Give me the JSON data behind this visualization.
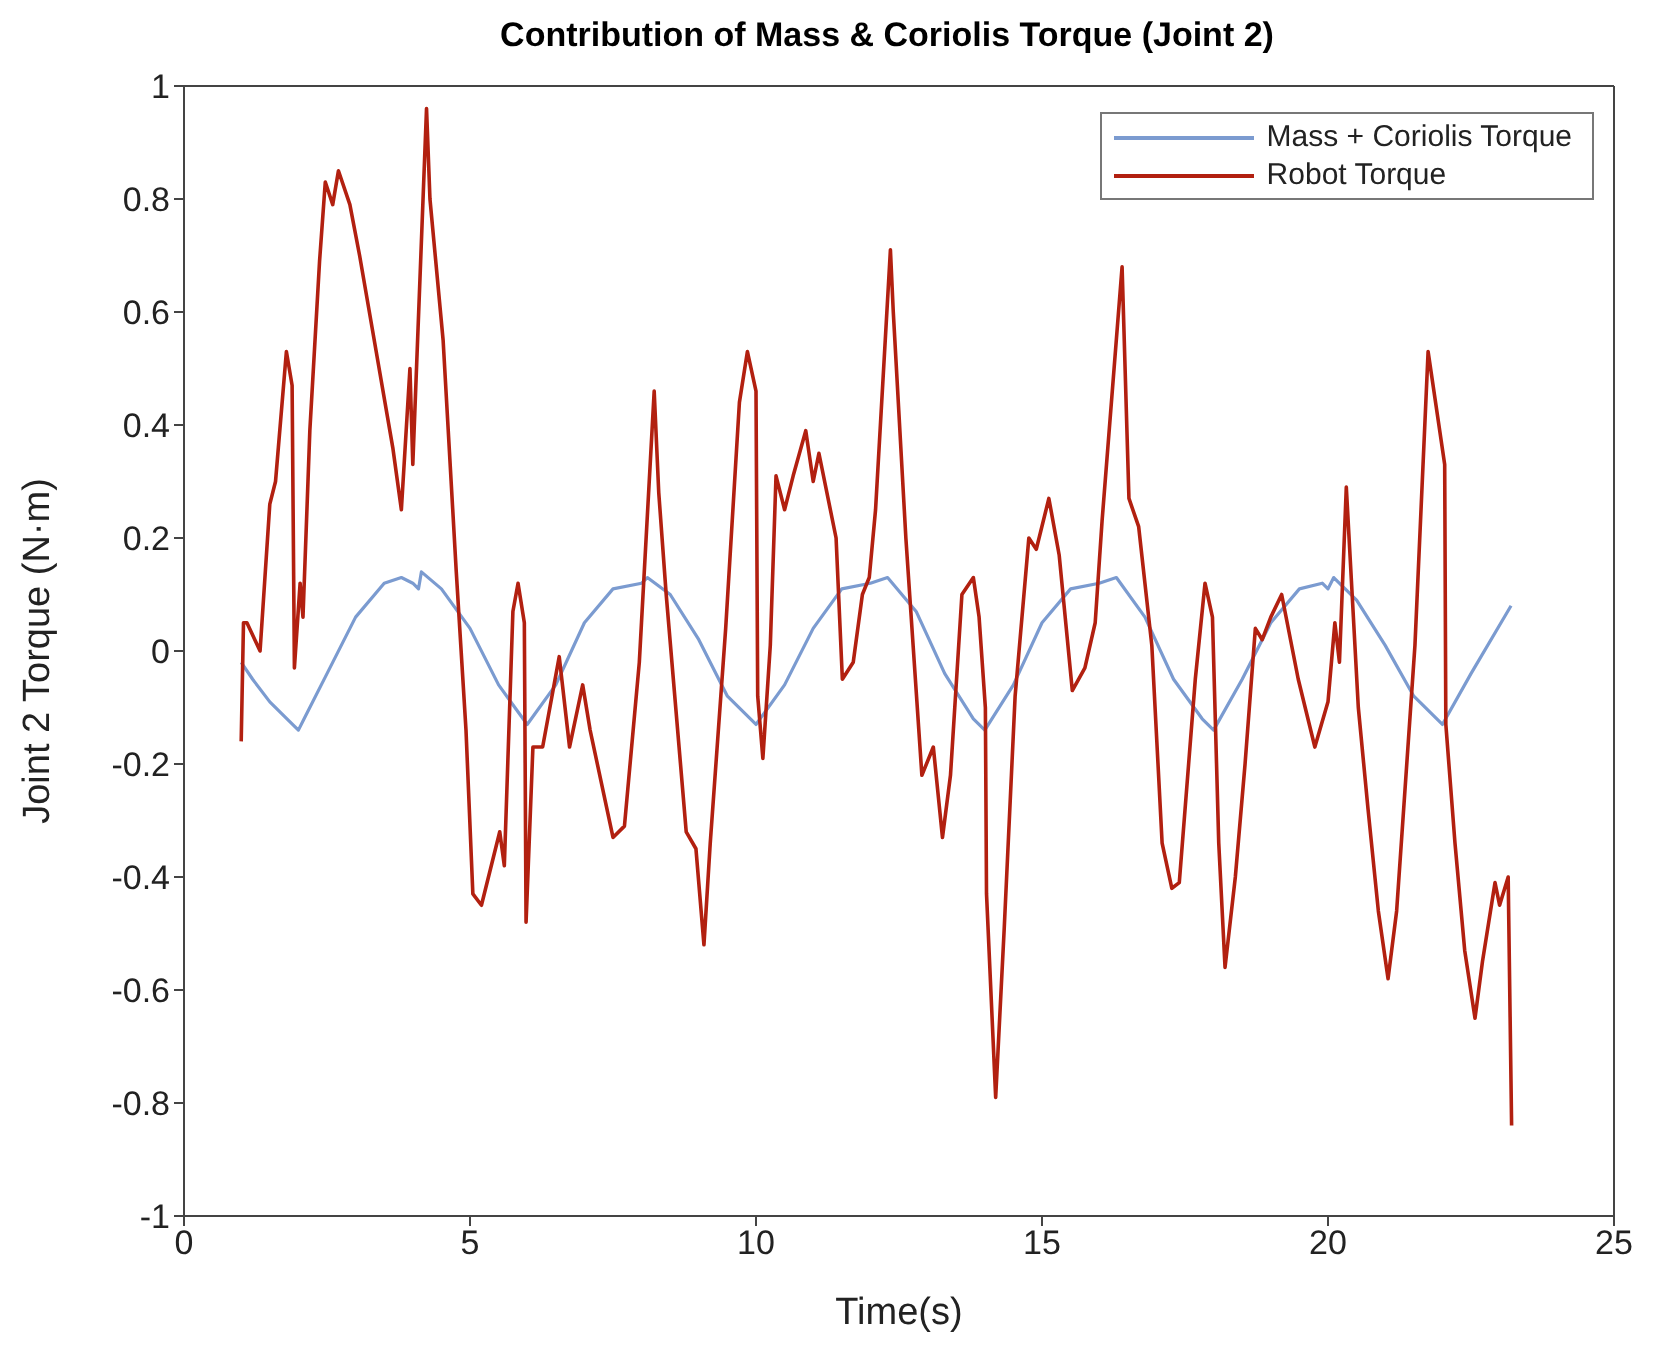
{
  "chart_data": {
    "type": "line",
    "title": "Contribution of Mass & Coriolis Torque (Joint 2)",
    "xlabel": "Time(s)",
    "ylabel": "Joint 2 Torque (N·m)",
    "xlim": [
      0,
      25
    ],
    "xticks": [
      0,
      5,
      10,
      15,
      20,
      25
    ],
    "ylim": [
      -1,
      1
    ],
    "yticks": [
      -1,
      -0.8,
      -0.6,
      -0.4,
      -0.2,
      0,
      0.2,
      0.4,
      0.6,
      0.8,
      1
    ],
    "legend": "top right",
    "line_style": "solid",
    "marker": "none",
    "series": [
      {
        "name": "Mass + Coriolis Torque",
        "color": "#7b9bd0",
        "x": [
          1.0,
          1.2,
          1.5,
          1.8,
          2.0,
          2.1,
          2.5,
          3.0,
          3.5,
          3.8,
          4.0,
          4.1,
          4.15,
          4.5,
          5.0,
          5.5,
          6.0,
          6.5,
          7.0,
          7.5,
          8.0,
          8.1,
          8.5,
          9.0,
          9.5,
          10.0,
          10.5,
          11.0,
          11.5,
          12.0,
          12.3,
          12.8,
          13.3,
          13.8,
          14.0,
          14.5,
          15.0,
          15.5,
          16.0,
          16.3,
          16.8,
          17.3,
          17.8,
          18.0,
          18.5,
          19.0,
          19.5,
          19.9,
          20.0,
          20.1,
          20.5,
          21.0,
          21.5,
          22.0,
          22.5,
          23.2
        ],
        "values": [
          -0.02,
          -0.05,
          -0.09,
          -0.12,
          -0.14,
          -0.12,
          -0.04,
          0.06,
          0.12,
          0.13,
          0.12,
          0.11,
          0.14,
          0.11,
          0.04,
          -0.06,
          -0.13,
          -0.06,
          0.05,
          0.11,
          0.12,
          0.13,
          0.1,
          0.02,
          -0.08,
          -0.13,
          -0.06,
          0.04,
          0.11,
          0.12,
          0.13,
          0.07,
          -0.04,
          -0.12,
          -0.14,
          -0.06,
          0.05,
          0.11,
          0.12,
          0.13,
          0.06,
          -0.05,
          -0.12,
          -0.14,
          -0.05,
          0.05,
          0.11,
          0.12,
          0.11,
          0.13,
          0.09,
          0.01,
          -0.08,
          -0.13,
          -0.04,
          0.08
        ]
      },
      {
        "name": "Robot Torque",
        "color": "#b22010",
        "x": [
          1.0,
          1.04,
          1.1,
          1.33,
          1.5,
          1.6,
          1.79,
          1.89,
          1.93,
          2.03,
          2.08,
          2.2,
          2.37,
          2.47,
          2.6,
          2.7,
          2.9,
          3.07,
          3.36,
          3.65,
          3.8,
          3.95,
          4.0,
          4.24,
          4.3,
          4.53,
          4.76,
          4.93,
          5.05,
          5.2,
          5.52,
          5.6,
          5.75,
          5.84,
          5.95,
          5.98,
          6.1,
          6.27,
          6.56,
          6.74,
          6.97,
          7.1,
          7.5,
          7.7,
          7.96,
          8.22,
          8.3,
          8.43,
          8.78,
          8.95,
          9.09,
          9.2,
          9.47,
          9.71,
          9.85,
          10.0,
          10.03,
          10.12,
          10.25,
          10.35,
          10.5,
          10.65,
          10.87,
          11.0,
          11.1,
          11.4,
          11.51,
          11.7,
          11.86,
          11.98,
          12.09,
          12.35,
          12.4,
          12.62,
          12.9,
          13.1,
          13.26,
          13.4,
          13.6,
          13.8,
          13.9,
          14.01,
          14.03,
          14.19,
          14.34,
          14.53,
          14.77,
          14.9,
          15.12,
          15.3,
          15.53,
          15.75,
          15.93,
          16.05,
          16.4,
          16.52,
          16.69,
          16.92,
          17.1,
          17.27,
          17.4,
          17.68,
          17.85,
          17.98,
          18.09,
          18.2,
          18.38,
          18.55,
          18.73,
          18.85,
          19.0,
          19.19,
          19.48,
          19.77,
          20.0,
          20.12,
          20.2,
          20.32,
          20.53,
          20.7,
          20.88,
          21.05,
          21.2,
          21.52,
          21.75,
          22.04,
          22.06,
          22.22,
          22.39,
          22.57,
          22.7,
          22.92,
          23.0,
          23.15,
          23.21
        ],
        "values": [
          -0.16,
          0.05,
          0.05,
          0.0,
          0.26,
          0.3,
          0.53,
          0.47,
          -0.03,
          0.12,
          0.06,
          0.39,
          0.69,
          0.83,
          0.79,
          0.85,
          0.79,
          0.7,
          0.53,
          0.36,
          0.25,
          0.5,
          0.33,
          0.96,
          0.8,
          0.55,
          0.14,
          -0.14,
          -0.43,
          -0.45,
          -0.32,
          -0.38,
          0.07,
          0.12,
          0.05,
          -0.48,
          -0.17,
          -0.17,
          -0.01,
          -0.17,
          -0.06,
          -0.14,
          -0.33,
          -0.31,
          -0.02,
          0.46,
          0.28,
          0.1,
          -0.32,
          -0.35,
          -0.52,
          -0.34,
          0.04,
          0.44,
          0.53,
          0.46,
          -0.08,
          -0.19,
          0.01,
          0.31,
          0.25,
          0.31,
          0.39,
          0.3,
          0.35,
          0.2,
          -0.05,
          -0.02,
          0.1,
          0.13,
          0.25,
          0.71,
          0.6,
          0.2,
          -0.22,
          -0.17,
          -0.33,
          -0.22,
          0.1,
          0.13,
          0.06,
          -0.1,
          -0.43,
          -0.79,
          -0.49,
          -0.08,
          0.2,
          0.18,
          0.27,
          0.17,
          -0.07,
          -0.03,
          0.05,
          0.23,
          0.68,
          0.27,
          0.22,
          0.01,
          -0.34,
          -0.42,
          -0.41,
          -0.05,
          0.12,
          0.06,
          -0.34,
          -0.56,
          -0.4,
          -0.2,
          0.04,
          0.02,
          0.06,
          0.1,
          -0.05,
          -0.17,
          -0.09,
          0.05,
          -0.02,
          0.29,
          -0.1,
          -0.28,
          -0.46,
          -0.58,
          -0.46,
          0.01,
          0.53,
          0.33,
          -0.13,
          -0.34,
          -0.53,
          -0.65,
          -0.55,
          -0.41,
          -0.45,
          -0.4,
          -0.84
        ]
      }
    ]
  }
}
